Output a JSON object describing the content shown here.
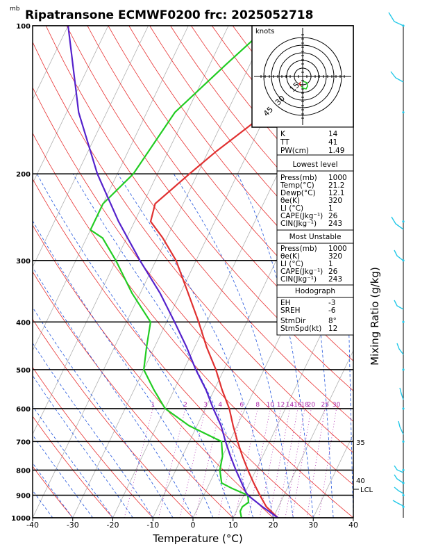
{
  "header": {
    "unit_corner": "mb",
    "title": "Ripatransone ECMWF0200 frc: 2025052718"
  },
  "axes": {
    "xlabel": "Temperature (°C)",
    "right_label": "Mixing Ratio (g/kg)"
  },
  "chart_data": {
    "type": "line",
    "title": "Ripatransone ECMWF0200 frc: 2025052718",
    "xlabel": "Temperature (°C)",
    "ylabel": "mb",
    "xlim": [
      -40,
      40
    ],
    "ylim": [
      1000,
      100
    ],
    "y_scale": "log (pressure, inverted)",
    "skew": "skew-T",
    "x_ticks": [
      -40,
      -30,
      -20,
      -10,
      0,
      10,
      20,
      30,
      40
    ],
    "y_ticks": [
      1000,
      900,
      800,
      700,
      600,
      500,
      400,
      300,
      200,
      100
    ],
    "mixing_ratio_labels": [
      "1",
      "2",
      "3",
      "4",
      "6",
      "8",
      "10",
      "12",
      "14",
      "16",
      "18",
      "20",
      "25",
      "30"
    ],
    "side_labels": [
      "35",
      "40"
    ],
    "lcl_label": "LCL",
    "lcl_pressure": 885,
    "series": [
      {
        "color": "#e03030",
        "points": [
          [
            1000,
            21.2
          ],
          [
            950,
            17
          ],
          [
            900,
            14
          ],
          [
            850,
            11
          ],
          [
            800,
            8
          ],
          [
            750,
            5
          ],
          [
            700,
            2
          ],
          [
            650,
            -1
          ],
          [
            600,
            -4
          ],
          [
            550,
            -8
          ],
          [
            500,
            -12
          ],
          [
            450,
            -17
          ],
          [
            400,
            -22
          ],
          [
            350,
            -28
          ],
          [
            300,
            -35
          ],
          [
            270,
            -41
          ],
          [
            250,
            -46
          ],
          [
            230,
            -47
          ],
          [
            200,
            -42
          ],
          [
            180,
            -38
          ],
          [
            150,
            -30
          ],
          [
            120,
            -20
          ],
          [
            100,
            -14
          ]
        ]
      },
      {
        "color": "#22cc22",
        "points": [
          [
            1000,
            12.1
          ],
          [
            970,
            11
          ],
          [
            950,
            11
          ],
          [
            930,
            12
          ],
          [
            900,
            11
          ],
          [
            870,
            6
          ],
          [
            850,
            3
          ],
          [
            800,
            1
          ],
          [
            750,
            0
          ],
          [
            700,
            -2
          ],
          [
            650,
            -12
          ],
          [
            600,
            -20
          ],
          [
            550,
            -25
          ],
          [
            500,
            -30
          ],
          [
            450,
            -32
          ],
          [
            400,
            -34
          ],
          [
            350,
            -42
          ],
          [
            300,
            -50
          ],
          [
            270,
            -56
          ],
          [
            260,
            -60
          ],
          [
            230,
            -60
          ],
          [
            200,
            -56
          ],
          [
            150,
            -53
          ],
          [
            120,
            -46
          ],
          [
            100,
            -40
          ]
        ]
      },
      {
        "color": "#5522cc",
        "points": [
          [
            1000,
            21.2
          ],
          [
            950,
            16
          ],
          [
            900,
            11
          ],
          [
            885,
            10
          ],
          [
            850,
            8
          ],
          [
            800,
            5
          ],
          [
            750,
            2
          ],
          [
            700,
            -1
          ],
          [
            650,
            -4
          ],
          [
            600,
            -8
          ],
          [
            550,
            -12
          ],
          [
            500,
            -17
          ],
          [
            450,
            -22
          ],
          [
            400,
            -28
          ],
          [
            350,
            -35
          ],
          [
            300,
            -44
          ],
          [
            250,
            -54
          ],
          [
            200,
            -65
          ],
          [
            150,
            -77
          ],
          [
            100,
            -90
          ]
        ]
      }
    ],
    "hodograph": {
      "unit": "knots",
      "rings": [
        "15",
        "30",
        "45"
      ]
    }
  },
  "indices": {
    "top": [
      {
        "label": "K",
        "value": "14"
      },
      {
        "label": "TT",
        "value": "41"
      },
      {
        "label": "PW(cm)",
        "value": "1.49"
      }
    ],
    "lowest_title": "Lowest level",
    "lowest": [
      {
        "label": "Press(mb)",
        "value": "1000"
      },
      {
        "label": "Temp(°C)",
        "value": "21.2"
      },
      {
        "label": "Dewp(°C)",
        "value": "12.1"
      },
      {
        "label": "θe(K)",
        "value": "320"
      },
      {
        "label": "LI (°C)",
        "value": "1"
      },
      {
        "label": "CAPE(Jkg⁻¹)",
        "value": "26"
      },
      {
        "label": "CIN(Jkg⁻¹)",
        "value": "243"
      }
    ],
    "unstable_title": "Most Unstable",
    "unstable": [
      {
        "label": "Press(mb)",
        "value": "1000"
      },
      {
        "label": "θe(K)",
        "value": "320"
      },
      {
        "label": "LI (°C)",
        "value": "1"
      },
      {
        "label": "CAPE(Jkg⁻¹)",
        "value": "26"
      },
      {
        "label": "CIN(Jkg⁻¹)",
        "value": "243"
      }
    ],
    "hodo_title": "Hodograph",
    "hodo": [
      {
        "label": "EH",
        "value": "-3"
      },
      {
        "label": "SREH",
        "value": "-6"
      },
      {
        "label": "StmDir",
        "value": "8°"
      },
      {
        "label": "StmSpd(kt)",
        "value": "12"
      }
    ]
  },
  "colors": {
    "temperature": "#e03030",
    "dewpoint": "#22cc22",
    "parcel": "#5522cc",
    "isotherm": "#b0b0b0",
    "dry_adiabat": "#e83030",
    "moist_adiabat": "#2255dd",
    "mixing_ratio": "#aa22aa",
    "wind_barb": "#22c8e8",
    "label_purple": "#aa22aa"
  }
}
